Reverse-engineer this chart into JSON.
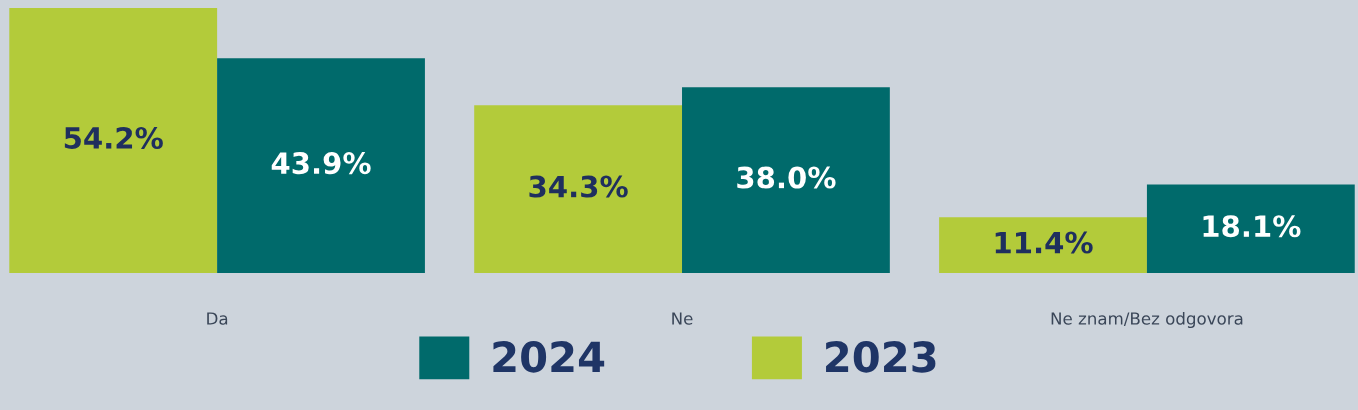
{
  "chart_data": {
    "type": "bar",
    "categories": [
      "Da",
      "Ne",
      "Ne znam/Bez odgovora"
    ],
    "series": [
      {
        "name": "2023",
        "color": "#b3cb3a",
        "values": [
          54.2,
          34.3,
          11.4
        ],
        "value_labels": [
          "54.2%",
          "34.3%",
          "11.4%"
        ]
      },
      {
        "name": "2024",
        "color": "#006a6b",
        "values": [
          43.9,
          38.0,
          18.1
        ],
        "value_labels": [
          "43.9%",
          "38.0%",
          "18.1%"
        ]
      }
    ],
    "legend": "bottom"
  }
}
